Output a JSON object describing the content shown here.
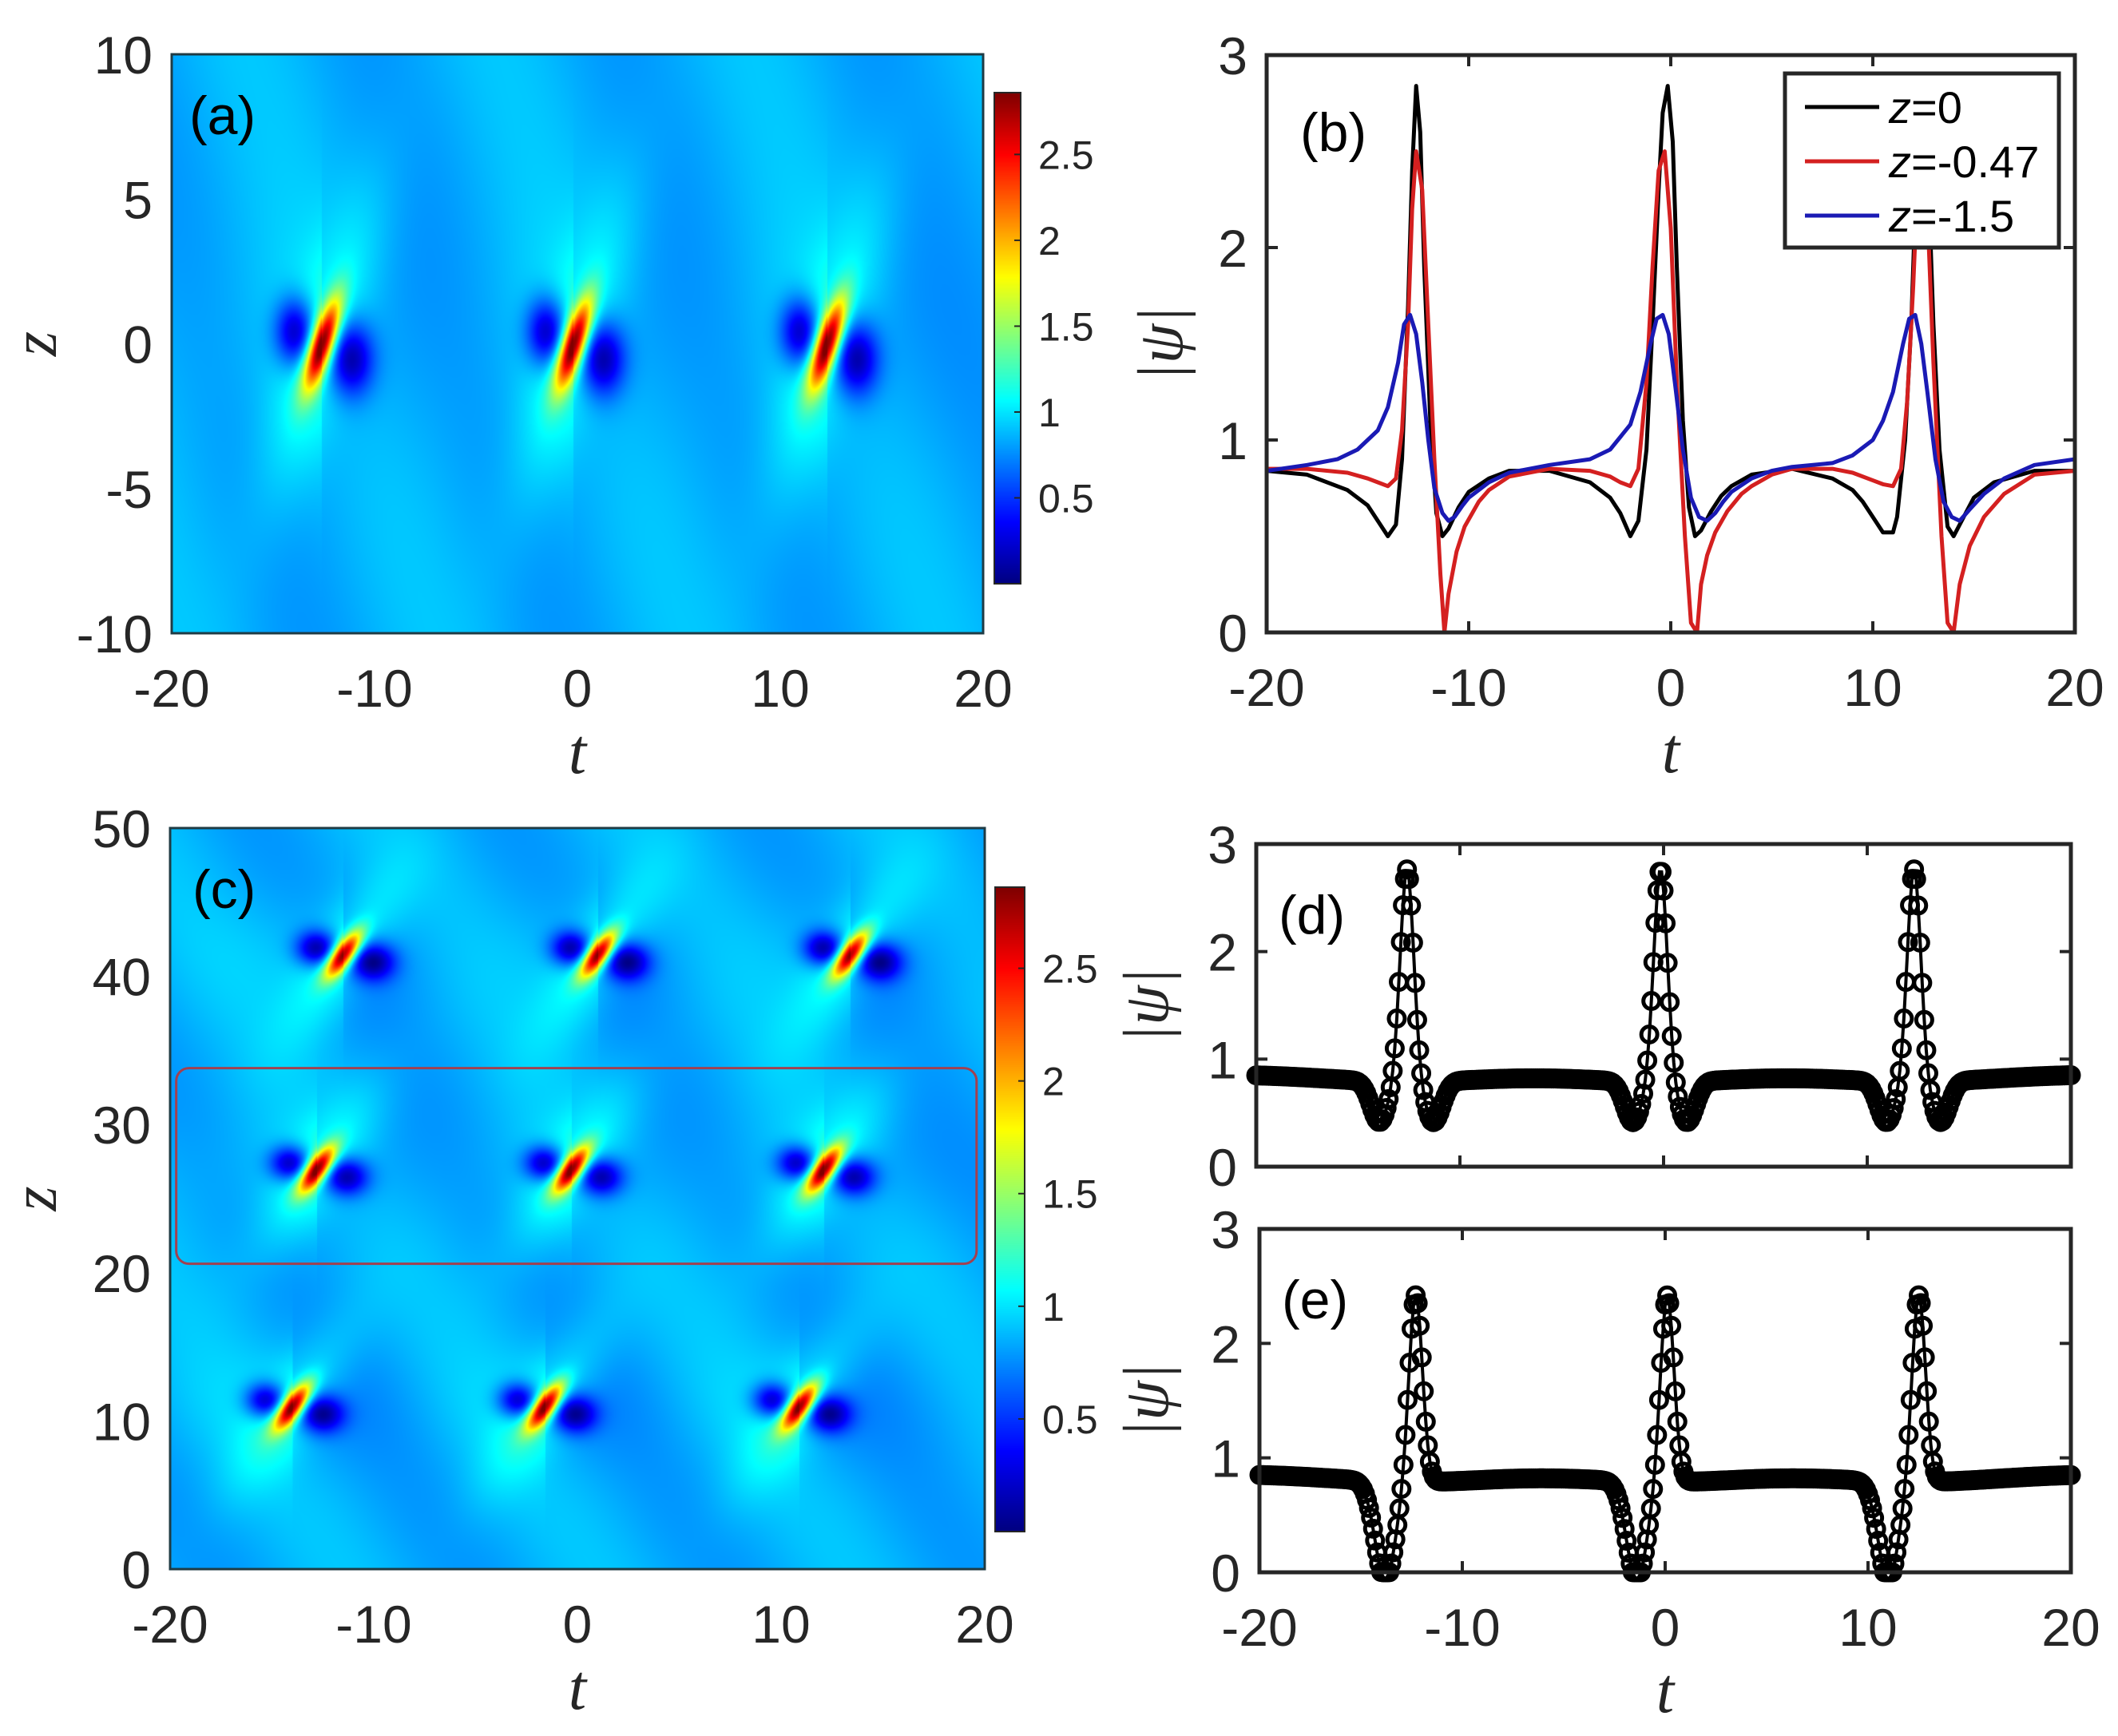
{
  "chart_data": [
    {
      "id": "a",
      "type": "heatmap",
      "panel_label": "(a)",
      "xlabel": "t",
      "ylabel": "z",
      "xlim": [
        -20,
        20
      ],
      "ylim": [
        -10,
        10
      ],
      "xticks": [
        -20,
        -10,
        0,
        10,
        20
      ],
      "yticks": [
        -10,
        -5,
        0,
        5,
        10
      ],
      "colormap": "jet",
      "colorbar": {
        "range": [
          0,
          2.86
        ],
        "ticks": [
          0.5,
          1,
          1.5,
          2,
          2.5
        ],
        "tick_labels": [
          "0.5",
          "1",
          "1.5",
          "2",
          "2.5"
        ]
      },
      "peaks": [
        {
          "t": -12.6,
          "z": 0
        },
        {
          "t": -0.2,
          "z": 0
        },
        {
          "t": 12.3,
          "z": 0
        }
      ],
      "background_value": 0.85,
      "peak_value": 2.86
    },
    {
      "id": "b",
      "type": "line",
      "panel_label": "(b)",
      "xlabel": "t",
      "ylabel": "|ψ|",
      "xlim": [
        -20,
        20
      ],
      "ylim": [
        0,
        3
      ],
      "xticks": [
        -20,
        -10,
        0,
        10,
        20
      ],
      "yticks": [
        0,
        1,
        2,
        3
      ],
      "legend": {
        "position": "top-right"
      },
      "series": [
        {
          "name": "z=0",
          "color": "#000000",
          "x": [
            -20,
            -18,
            -16,
            -15,
            -14.5,
            -14,
            -13.6,
            -13.3,
            -13.0,
            -12.8,
            -12.6,
            -12.4,
            -12.2,
            -11.9,
            -11.6,
            -11.3,
            -11.0,
            -10.5,
            -10,
            -9,
            -8,
            -6,
            -4,
            -3,
            -2.5,
            -2,
            -1.6,
            -1.2,
            -0.9,
            -0.6,
            -0.4,
            -0.15,
            0.1,
            0.3,
            0.6,
            0.9,
            1.2,
            1.5,
            2,
            2.5,
            3,
            4,
            6,
            8,
            9,
            9.5,
            10,
            10.5,
            11,
            11.2,
            11.6,
            11.9,
            12.1,
            12.3,
            12.5,
            12.7,
            13.0,
            13.3,
            13.7,
            14.0,
            14.5,
            15,
            16,
            18,
            20
          ],
          "y": [
            0.84,
            0.82,
            0.74,
            0.66,
            0.58,
            0.5,
            0.56,
            0.9,
            1.7,
            2.4,
            2.84,
            2.6,
            1.9,
            1.1,
            0.62,
            0.5,
            0.54,
            0.65,
            0.73,
            0.8,
            0.84,
            0.84,
            0.78,
            0.7,
            0.62,
            0.5,
            0.58,
            0.95,
            1.6,
            2.3,
            2.7,
            2.84,
            2.55,
            1.9,
            1.1,
            0.65,
            0.5,
            0.53,
            0.63,
            0.71,
            0.76,
            0.82,
            0.85,
            0.8,
            0.74,
            0.68,
            0.6,
            0.52,
            0.52,
            0.6,
            1.0,
            1.6,
            2.2,
            2.7,
            2.84,
            2.5,
            1.6,
            0.95,
            0.55,
            0.5,
            0.6,
            0.7,
            0.78,
            0.84,
            0.84
          ]
        },
        {
          "name": "z=-0.47",
          "color": "#d42020",
          "x": [
            -20,
            -18,
            -16,
            -15,
            -14.5,
            -14,
            -13.6,
            -13.3,
            -13.0,
            -12.8,
            -12.6,
            -12.3,
            -12.0,
            -11.7,
            -11.4,
            -11.2,
            -11.0,
            -10.6,
            -10.2,
            -9.5,
            -9,
            -8,
            -6,
            -4,
            -3,
            -2.5,
            -2,
            -1.6,
            -1.2,
            -0.9,
            -0.6,
            -0.3,
            0,
            0.3,
            0.7,
            1.0,
            1.3,
            1.5,
            1.8,
            2.2,
            2.8,
            3.5,
            4,
            5,
            6,
            8,
            9,
            10,
            10.5,
            11,
            11.4,
            11.7,
            12.0,
            12.2,
            12.4,
            12.7,
            13.0,
            13.4,
            13.7,
            14.0,
            14.3,
            14.8,
            15.5,
            16.5,
            18,
            20
          ],
          "y": [
            0.85,
            0.85,
            0.83,
            0.8,
            0.78,
            0.76,
            0.8,
            1.05,
            1.6,
            2.2,
            2.5,
            2.3,
            1.6,
            0.9,
            0.3,
            0.0,
            0.2,
            0.42,
            0.55,
            0.68,
            0.74,
            0.81,
            0.85,
            0.84,
            0.81,
            0.78,
            0.76,
            0.85,
            1.3,
            1.9,
            2.4,
            2.5,
            2.1,
            1.3,
            0.5,
            0.05,
            0.0,
            0.25,
            0.4,
            0.52,
            0.63,
            0.72,
            0.76,
            0.82,
            0.85,
            0.85,
            0.83,
            0.79,
            0.77,
            0.76,
            0.85,
            1.2,
            1.8,
            2.3,
            2.5,
            2.2,
            1.4,
            0.5,
            0.05,
            0.0,
            0.25,
            0.45,
            0.6,
            0.72,
            0.82,
            0.84
          ]
        },
        {
          "name": "z=-1.5",
          "color": "#1a1ab4",
          "x": [
            -20,
            -18,
            -16.5,
            -15.5,
            -14.5,
            -14,
            -13.5,
            -13.2,
            -12.9,
            -12.6,
            -12.3,
            -12.0,
            -11.7,
            -11.3,
            -11.0,
            -10.7,
            -10.3,
            -10,
            -9,
            -8,
            -6,
            -4,
            -3,
            -2,
            -1.5,
            -1.0,
            -0.7,
            -0.4,
            -0.1,
            0.2,
            0.6,
            1.0,
            1.4,
            1.8,
            2.2,
            2.6,
            3,
            4,
            5,
            6,
            8,
            9,
            10,
            10.5,
            11,
            11.5,
            11.8,
            12.1,
            12.4,
            12.7,
            13.1,
            13.5,
            13.9,
            14.3,
            14.8,
            15.5,
            16.5,
            18,
            20
          ],
          "y": [
            0.84,
            0.87,
            0.9,
            0.95,
            1.05,
            1.17,
            1.4,
            1.6,
            1.65,
            1.55,
            1.3,
            1.0,
            0.75,
            0.62,
            0.58,
            0.6,
            0.66,
            0.7,
            0.78,
            0.83,
            0.87,
            0.9,
            0.95,
            1.08,
            1.25,
            1.5,
            1.63,
            1.65,
            1.55,
            1.3,
            0.95,
            0.7,
            0.6,
            0.58,
            0.62,
            0.68,
            0.73,
            0.8,
            0.84,
            0.86,
            0.88,
            0.92,
            1.0,
            1.1,
            1.25,
            1.5,
            1.63,
            1.65,
            1.5,
            1.25,
            0.9,
            0.68,
            0.6,
            0.58,
            0.64,
            0.72,
            0.8,
            0.87,
            0.9
          ]
        }
      ]
    },
    {
      "id": "c",
      "type": "heatmap",
      "panel_label": "(c)",
      "xlabel": "t",
      "ylabel": "z",
      "xlim": [
        -20,
        20
      ],
      "ylim": [
        0,
        50
      ],
      "xticks": [
        -20,
        -10,
        0,
        10,
        20
      ],
      "yticks": [
        0,
        10,
        20,
        30,
        40,
        50
      ],
      "colormap": "jet",
      "colorbar": {
        "range": [
          0,
          2.86
        ],
        "ticks": [
          0.5,
          1,
          1.5,
          2,
          2.5
        ],
        "tick_labels": [
          "0.5",
          "1",
          "1.5",
          "2",
          "2.5"
        ]
      },
      "peaks": [
        {
          "t": -14.0,
          "z": 11
        },
        {
          "t": -1.6,
          "z": 11
        },
        {
          "t": 10.9,
          "z": 11
        },
        {
          "t": -12.8,
          "z": 27
        },
        {
          "t": -0.3,
          "z": 27
        },
        {
          "t": 12.1,
          "z": 27
        },
        {
          "t": -11.5,
          "z": 41.5
        },
        {
          "t": 1.0,
          "z": 41.5
        },
        {
          "t": 13.4,
          "z": 41.5
        }
      ],
      "highlight_box": {
        "t_range": [
          -19.7,
          19.6
        ],
        "z_range": [
          20.6,
          33.8
        ],
        "color": "#a3404f"
      },
      "background_value": 0.85,
      "peak_value": 2.86
    },
    {
      "id": "d",
      "type": "scatter",
      "panel_label": "(d)",
      "xlabel": "",
      "ylabel": "|ψ|",
      "xlim": [
        -20,
        20
      ],
      "ylim": [
        0,
        3
      ],
      "xticks": [
        -20,
        -10,
        0,
        10,
        20
      ],
      "yticks": [
        0,
        1,
        2,
        3
      ],
      "marker": "open-circle",
      "color": "#000000",
      "series_source": "b:z=0",
      "peaks_t": [
        -12.6,
        -0.15,
        12.3
      ],
      "peak_value": 2.84,
      "min_value": 0.48,
      "baseline": 0.86
    },
    {
      "id": "e",
      "type": "scatter",
      "panel_label": "(e)",
      "xlabel": "t",
      "ylabel": "|ψ|",
      "xlim": [
        -20,
        20
      ],
      "ylim": [
        0,
        3
      ],
      "xticks": [
        -20,
        -10,
        0,
        10,
        20
      ],
      "yticks": [
        0,
        1,
        2,
        3
      ],
      "marker": "open-circle",
      "color": "#000000",
      "series_source": "b:z=-0.47-mirrored",
      "peaks_t": [
        -12.3,
        0.1,
        12.5
      ],
      "zeros_t": [
        -13.8,
        -1.4,
        11.0
      ],
      "peak_value": 2.5,
      "baseline": 0.86
    }
  ]
}
